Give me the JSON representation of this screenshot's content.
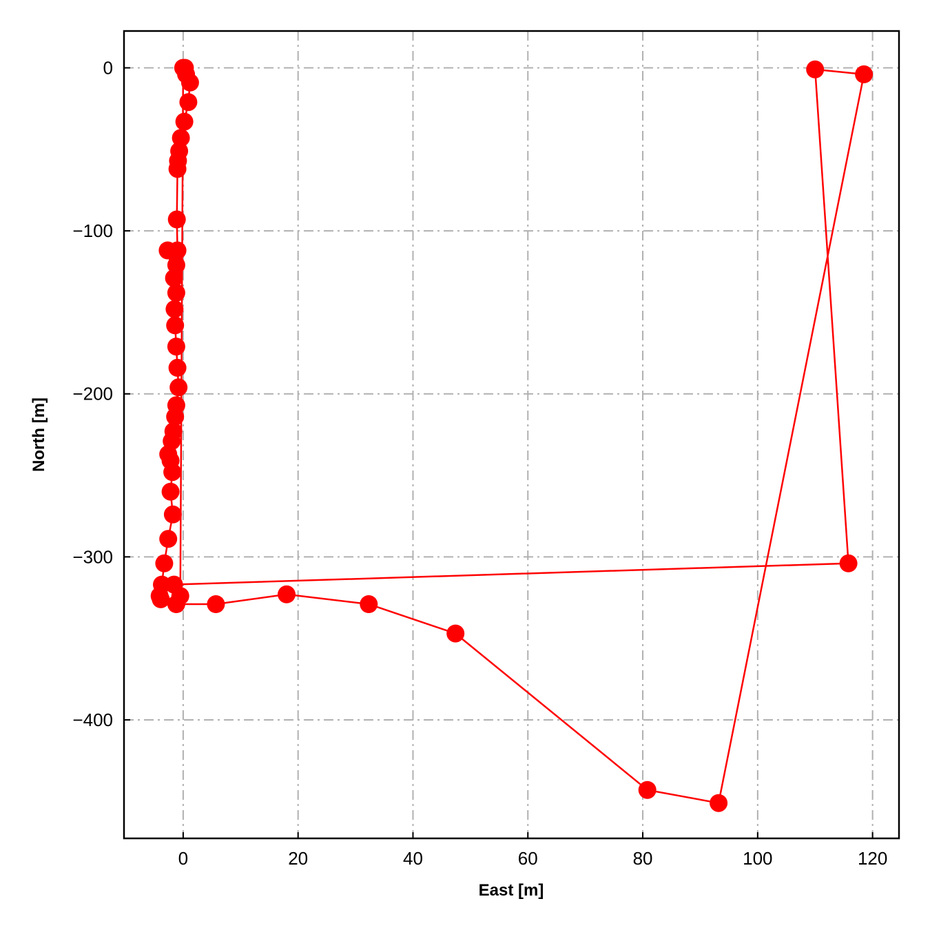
{
  "chart_data": {
    "type": "line",
    "xlabel": "East [m]",
    "ylabel": "North [m]",
    "xlim": [
      -10.3,
      124.6
    ],
    "ylim": [
      -472.7,
      22.6
    ],
    "xticks": [
      0,
      20,
      40,
      60,
      80,
      100,
      120
    ],
    "yticks": [
      0,
      -100,
      -200,
      -300,
      -400
    ],
    "xtick_labels": [
      "0",
      "20",
      "40",
      "60",
      "80",
      "100",
      "120"
    ],
    "ytick_labels": [
      "0",
      "−100",
      "−200",
      "−300",
      "−400"
    ],
    "grid": true,
    "marker": "circle",
    "color": "#ff0000",
    "series": [
      {
        "x": [
          0.3,
          0.5,
          1.2,
          0.9,
          0.2,
          -0.4,
          -0.7,
          -0.9,
          -1.0,
          -1.1,
          -1.0,
          -1.2,
          -2.7,
          -1.6,
          -1.2,
          -1.5,
          -1.4,
          -1.2,
          -1.0,
          -0.8,
          -1.2,
          -1.4,
          -1.7,
          -2.0,
          -2.6,
          -2.2,
          -1.9,
          -2.2,
          -1.8,
          -2.6,
          -3.3,
          -3.7,
          -4.1,
          -3.9,
          -1.2,
          5.7,
          18.0,
          32.3,
          47.4,
          80.8,
          93.2,
          118.5,
          110.0,
          115.8,
          -1.6,
          -0.5,
          0.0
        ],
        "y": [
          0,
          -4,
          -9,
          -21,
          -33,
          -43,
          -51,
          -57,
          -62,
          -93,
          -112,
          -121,
          -112,
          -129,
          -138,
          -148,
          -158,
          -171,
          -184,
          -196,
          -207,
          -214,
          -223,
          -229,
          -237,
          -241,
          -248,
          -260,
          -274,
          -289,
          -304,
          -317,
          -324,
          -326,
          -329,
          -329,
          -323,
          -329,
          -347,
          -443,
          -451,
          -4,
          -1,
          -304,
          -317,
          -324,
          0
        ]
      }
    ]
  }
}
